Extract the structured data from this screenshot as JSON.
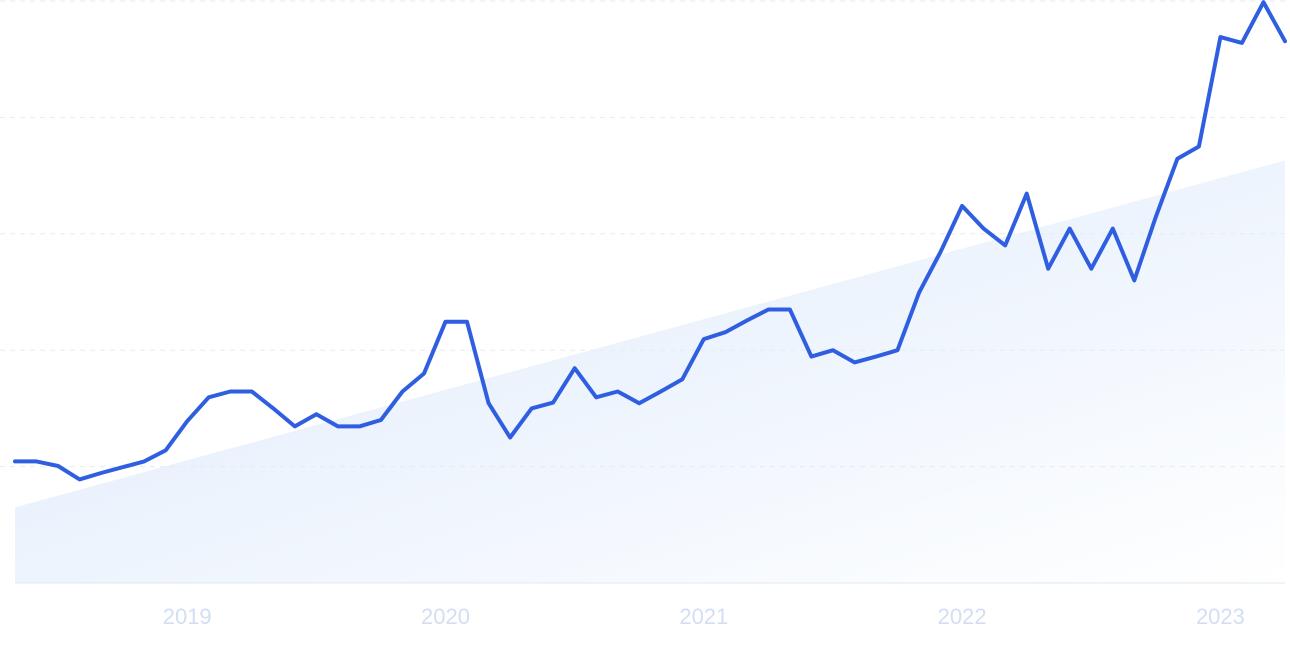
{
  "chart_data": {
    "type": "line",
    "categories": [
      null,
      null,
      null,
      null,
      null,
      null,
      null,
      null,
      "2019",
      null,
      null,
      null,
      null,
      null,
      null,
      null,
      null,
      null,
      null,
      null,
      "2020",
      null,
      null,
      null,
      null,
      null,
      null,
      null,
      null,
      null,
      null,
      null,
      "2021",
      null,
      null,
      null,
      null,
      null,
      null,
      null,
      null,
      null,
      null,
      null,
      "2022",
      null,
      null,
      null,
      null,
      null,
      null,
      null,
      null,
      null,
      null,
      null,
      "2023",
      null,
      null,
      null
    ],
    "series": [
      {
        "color": "#2f5fe0",
        "values": [
          20.9,
          20.9,
          20.1,
          17.8,
          18.9,
          19.9,
          20.9,
          22.8,
          27.8,
          31.9,
          32.9,
          32.9,
          30.0,
          26.9,
          29.0,
          26.9,
          26.9,
          28.0,
          32.9,
          36.0,
          44.9,
          44.9,
          30.9,
          25.0,
          30.0,
          31.0,
          36.9,
          31.9,
          32.9,
          30.9,
          32.9,
          35.0,
          41.9,
          43.1,
          45.1,
          47.0,
          47.0,
          38.9,
          40.0,
          37.9,
          38.9,
          40.0,
          49.9,
          56.9,
          64.8,
          60.9,
          58.0,
          66.9,
          54.0,
          60.9,
          54.0,
          60.9,
          52.0,
          62.9,
          72.9,
          75.0,
          93.8,
          92.8,
          99.8,
          93.1
        ]
      }
    ],
    "trend": {
      "color": "#dce9fb",
      "values": [
        13.0,
        72.6
      ]
    },
    "ylim": [
      0,
      100
    ],
    "yticks": [
      0,
      20,
      40,
      60,
      80,
      100
    ],
    "grid": true
  }
}
